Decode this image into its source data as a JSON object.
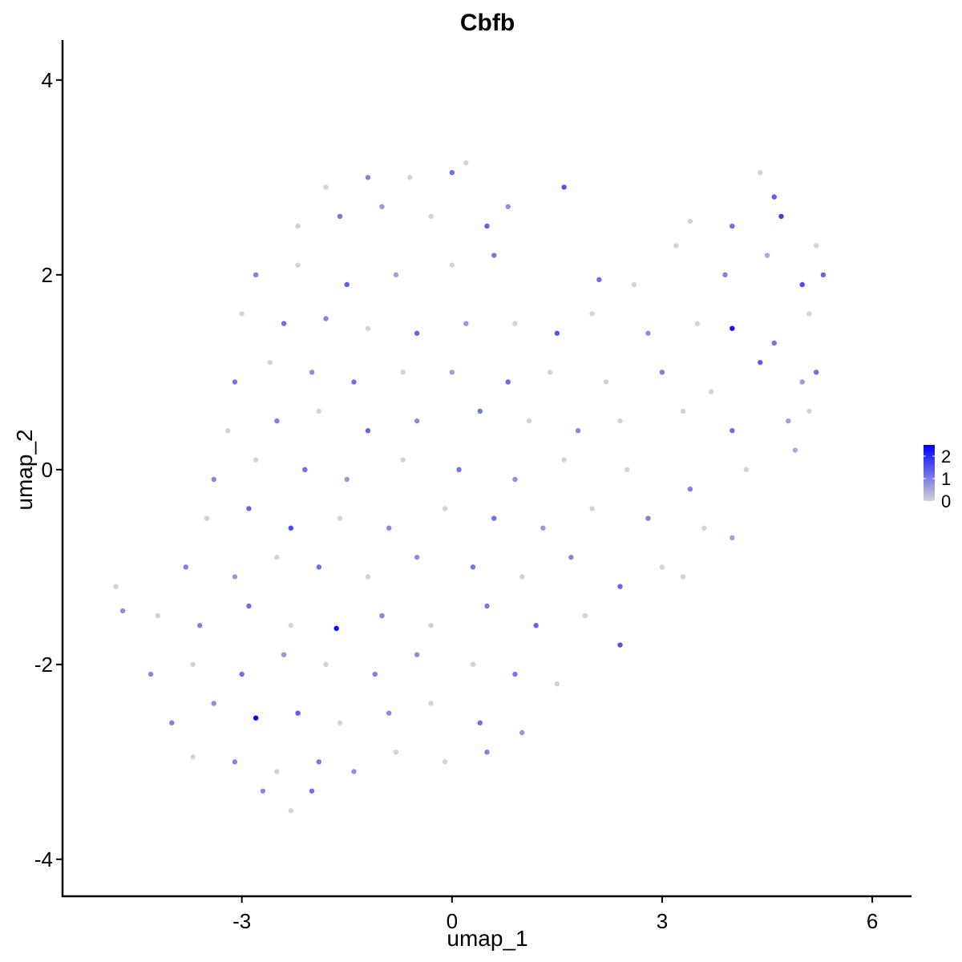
{
  "chart_data": {
    "type": "scatter",
    "title": "Cbfb",
    "x_label": "umap_1",
    "y_label": "umap_2",
    "xlim": [
      -5.56,
      6.56
    ],
    "ylim": [
      -4.38,
      4.41
    ],
    "xticks": [
      -3,
      0,
      3,
      6
    ],
    "yticks": [
      -4,
      -2,
      0,
      2,
      4
    ],
    "low_color": "#d3d3d3",
    "high_color": "#0000ff",
    "color_lim": [
      0,
      2.5
    ],
    "color_ticks": [
      0,
      1,
      2
    ],
    "x": [
      -1.8,
      -1.2,
      -0.6,
      0,
      0.2,
      0.8,
      4.4,
      4.6,
      -2.2,
      -1.6,
      -1,
      -0.3,
      0.5,
      1.6,
      3.4,
      4.0,
      4.7,
      5.2,
      -2.8,
      -2.2,
      -1.5,
      -0.8,
      0,
      0.6,
      2.1,
      2.6,
      3.2,
      3.9,
      4.5,
      5.0,
      5.3,
      -3.0,
      -2.4,
      -1.8,
      -1.2,
      -0.5,
      0.2,
      0.9,
      1.5,
      2.0,
      2.8,
      3.5,
      4.0,
      4.6,
      5.1,
      -3.1,
      -2.6,
      -2.0,
      -1.4,
      -0.7,
      0,
      0.8,
      1.4,
      2.2,
      3.0,
      3.7,
      4.4,
      5.0,
      5.2,
      -3.2,
      -2.5,
      -1.9,
      -1.2,
      -0.5,
      0.4,
      1.1,
      1.8,
      2.4,
      3.3,
      4.0,
      4.8,
      5.1,
      -3.4,
      -2.8,
      -2.1,
      -1.5,
      -0.7,
      0.1,
      0.9,
      1.6,
      2.5,
      3.4,
      4.2,
      4.9,
      -3.5,
      -2.9,
      -2.3,
      -1.6,
      -0.9,
      -0.1,
      0.6,
      1.3,
      2.0,
      2.8,
      3.6,
      4.0,
      -3.8,
      -3.1,
      -2.5,
      -1.9,
      -1.2,
      -0.5,
      0.3,
      1.0,
      1.7,
      2.4,
      3.0,
      3.3,
      -4.8,
      -4.7,
      -4.2,
      -3.6,
      -2.9,
      -2.3,
      -1.65,
      -1.0,
      -0.3,
      0.5,
      1.2,
      1.9,
      2.4,
      -4.3,
      -3.7,
      -3.0,
      -2.4,
      -1.8,
      -1.1,
      -0.5,
      0.3,
      0.9,
      1.5,
      -4.0,
      -3.4,
      -2.8,
      -2.2,
      -1.6,
      -0.9,
      -0.3,
      0.4,
      1.0,
      -3.7,
      -3.1,
      -2.5,
      -1.9,
      -1.4,
      -0.8,
      -0.1,
      0.5,
      -2.7,
      -2.3,
      -2.0
    ],
    "y": [
      2.9,
      3.0,
      3.0,
      3.05,
      3.15,
      2.7,
      3.05,
      2.8,
      2.5,
      2.6,
      2.7,
      2.6,
      2.5,
      2.9,
      2.55,
      2.5,
      2.6,
      2.3,
      2.0,
      2.1,
      1.9,
      2.0,
      2.1,
      2.2,
      1.95,
      1.9,
      2.3,
      2.0,
      2.2,
      1.9,
      2.0,
      1.6,
      1.5,
      1.55,
      1.45,
      1.4,
      1.5,
      1.5,
      1.4,
      1.6,
      1.4,
      1.5,
      1.45,
      1.3,
      1.6,
      0.9,
      1.1,
      1.0,
      0.9,
      1.0,
      1.0,
      0.9,
      1.0,
      0.9,
      1.0,
      0.8,
      1.1,
      0.9,
      1.0,
      0.4,
      0.5,
      0.6,
      0.4,
      0.5,
      0.6,
      0.5,
      0.4,
      0.5,
      0.6,
      0.4,
      0.5,
      0.6,
      -0.1,
      0.1,
      0,
      -0.1,
      0.1,
      0,
      -0.1,
      0.1,
      0,
      -0.2,
      0,
      0.2,
      -0.5,
      -0.4,
      -0.6,
      -0.5,
      -0.6,
      -0.4,
      -0.5,
      -0.6,
      -0.4,
      -0.5,
      -0.6,
      -0.7,
      -1.0,
      -1.1,
      -0.9,
      -1.0,
      -1.1,
      -0.9,
      -1.0,
      -1.1,
      -0.9,
      -1.2,
      -1.0,
      -1.1,
      -1.2,
      -1.45,
      -1.5,
      -1.6,
      -1.4,
      -1.6,
      -1.63,
      -1.5,
      -1.6,
      -1.4,
      -1.6,
      -1.5,
      -1.8,
      -2.1,
      -2.0,
      -2.1,
      -1.9,
      -2.0,
      -2.1,
      -1.9,
      -2.0,
      -2.1,
      -2.2,
      -2.6,
      -2.4,
      -2.55,
      -2.5,
      -2.6,
      -2.5,
      -2.4,
      -2.6,
      -2.7,
      -2.95,
      -3.0,
      -3.1,
      -3.0,
      -3.1,
      -2.9,
      -3.0,
      -2.9,
      -3.3,
      -3.5,
      -3.3
    ],
    "expression": [
      0,
      1.0,
      0,
      1.2,
      0,
      0.8,
      0,
      1.4,
      0,
      1.1,
      0.7,
      0,
      1.3,
      1.5,
      0,
      1.2,
      1.8,
      0,
      1.0,
      0,
      1.4,
      0.6,
      0,
      1.1,
      1.2,
      0,
      0,
      1.0,
      0.5,
      1.6,
      1.3,
      0,
      1.2,
      0.9,
      0,
      1.3,
      0.7,
      0,
      1.5,
      0,
      0.8,
      0,
      2.3,
      1.1,
      0,
      1.1,
      0,
      0.8,
      1.2,
      0,
      0.6,
      1.3,
      0,
      0,
      1.0,
      0,
      1.4,
      0.7,
      1.2,
      0,
      1.0,
      0,
      1.3,
      0.8,
      1.1,
      0,
      0.9,
      0,
      0,
      1.2,
      0.6,
      0,
      0.9,
      0,
      1.2,
      0.7,
      0,
      1.1,
      0.8,
      0,
      0,
      1.0,
      0,
      0.5,
      0,
      1.3,
      1.6,
      0,
      0.9,
      0,
      1.2,
      0.7,
      0,
      1.0,
      0,
      0.6,
      1.0,
      0.7,
      0,
      1.2,
      0,
      0.8,
      1.1,
      0,
      0.9,
      1.3,
      0,
      0,
      0,
      0.8,
      0,
      1.0,
      1.2,
      0,
      2.4,
      0.9,
      0,
      1.1,
      1.3,
      0,
      1.5,
      0.9,
      0,
      1.2,
      0.7,
      0,
      1.0,
      0.8,
      0,
      1.1,
      0,
      1.0,
      0.8,
      2.5,
      1.4,
      0,
      0.9,
      0,
      1.2,
      0.7,
      0,
      0.9,
      0,
      1.1,
      0.8,
      0,
      0,
      1.0,
      0.9,
      0,
      1.2
    ]
  }
}
